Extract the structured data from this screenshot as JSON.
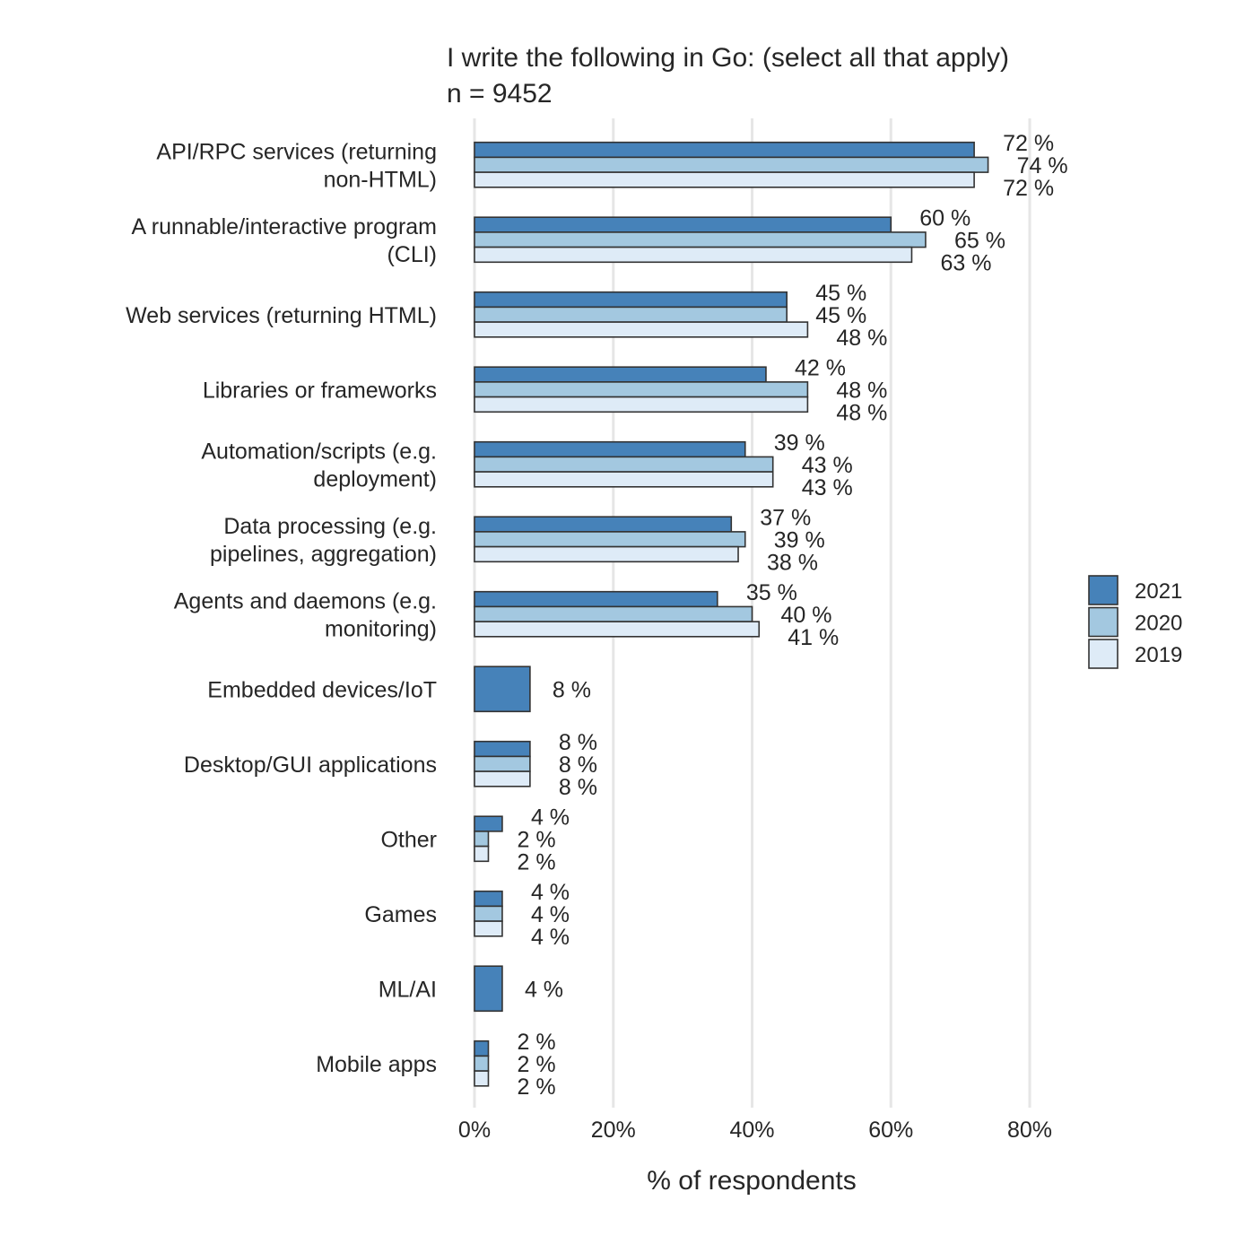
{
  "chart_data": {
    "type": "bar",
    "orientation": "horizontal",
    "title_lines": [
      "I write the following in Go: (select all that apply)",
      "n = 9452"
    ],
    "xlabel": "% of respondents",
    "ylabel": "",
    "xlim": [
      0,
      80
    ],
    "x_ticks": [
      0,
      20,
      40,
      60,
      80
    ],
    "x_tick_labels": [
      "0%",
      "20%",
      "40%",
      "60%",
      "80%"
    ],
    "grid": "vertical",
    "legend_position": "right",
    "value_suffix": " %",
    "series": [
      {
        "name": "2021",
        "color": "#4682b9",
        "values": [
          72,
          60,
          45,
          42,
          39,
          37,
          35,
          8,
          8,
          4,
          4,
          4,
          2
        ]
      },
      {
        "name": "2020",
        "color": "#a3c8e0",
        "values": [
          74,
          65,
          45,
          48,
          43,
          39,
          40,
          null,
          8,
          2,
          4,
          null,
          2
        ]
      },
      {
        "name": "2019",
        "color": "#deebf7",
        "values": [
          72,
          63,
          48,
          48,
          43,
          38,
          41,
          null,
          8,
          2,
          4,
          null,
          2
        ]
      }
    ],
    "categories": [
      [
        "API/RPC services (returning",
        "non-HTML)"
      ],
      [
        "A runnable/interactive program",
        "(CLI)"
      ],
      [
        "Web services (returning HTML)"
      ],
      [
        "Libraries or frameworks"
      ],
      [
        "Automation/scripts (e.g.",
        "deployment)"
      ],
      [
        "Data processing (e.g.",
        "pipelines, aggregation)"
      ],
      [
        "Agents and daemons (e.g.",
        "monitoring)"
      ],
      [
        "Embedded devices/IoT"
      ],
      [
        "Desktop/GUI applications"
      ],
      [
        "Other"
      ],
      [
        "Games"
      ],
      [
        "ML/AI"
      ],
      [
        "Mobile apps"
      ]
    ]
  }
}
